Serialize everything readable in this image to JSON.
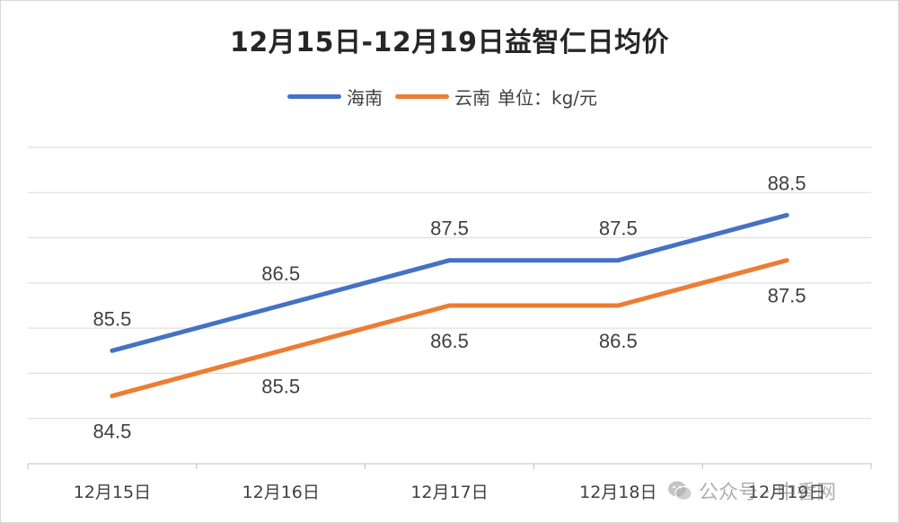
{
  "chart_data": {
    "type": "line",
    "title": "12月15日-12月19日益智仁日均价",
    "categories": [
      "12月15日",
      "12月16日",
      "12月17日",
      "12月18日",
      "12月19日"
    ],
    "series": [
      {
        "name": "海南",
        "values": [
          85.5,
          86.5,
          87.5,
          87.5,
          88.5
        ],
        "color": "#4472C4",
        "label_position": "above"
      },
      {
        "name": "云南",
        "values": [
          84.5,
          85.5,
          86.5,
          86.5,
          87.5
        ],
        "color": "#ED7D31",
        "label_position": "below"
      }
    ],
    "unit_note": "单位：kg/元",
    "ylim": [
      83,
      90
    ],
    "grid": true,
    "legend_position": "top"
  },
  "watermark": {
    "icon": "wechat-icon",
    "text": "公众号 · 中香网"
  }
}
